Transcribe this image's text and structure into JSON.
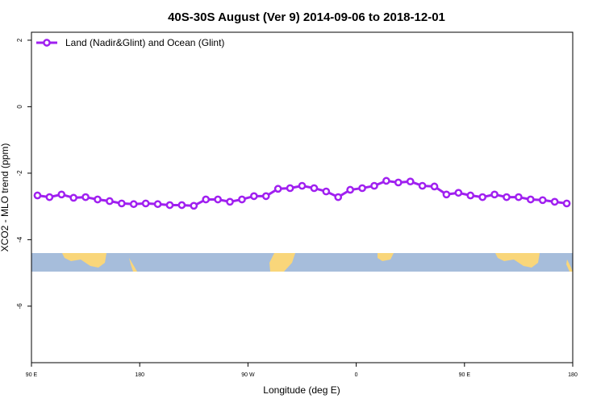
{
  "chart_data": {
    "type": "line",
    "title": "40S-30S August (Ver 9)   2014-09-06 to 2018-12-01",
    "x_label": "Longitude (deg E)",
    "y_label": "XCO2 - MLO trend (ppm)",
    "x": [
      95,
      105,
      115,
      125,
      135,
      145,
      155,
      165,
      175,
      185,
      195,
      205,
      215,
      225,
      235,
      245,
      255,
      265,
      275,
      285,
      295,
      305,
      315,
      325,
      335,
      345,
      355,
      365,
      375,
      385,
      395,
      405,
      415,
      425,
      435,
      445,
      455,
      465,
      475,
      485,
      495,
      505,
      515,
      525,
      535
    ],
    "series": [
      {
        "name": "Land (Nadir&Glint) and Ocean (Glint)",
        "color": "#a020f0",
        "values": [
          -2.67,
          -2.72,
          -2.64,
          -2.74,
          -2.72,
          -2.79,
          -2.84,
          -2.91,
          -2.93,
          -2.91,
          -2.93,
          -2.96,
          -2.96,
          -2.98,
          -2.79,
          -2.79,
          -2.86,
          -2.79,
          -2.69,
          -2.69,
          -2.47,
          -2.45,
          -2.38,
          -2.45,
          -2.55,
          -2.72,
          -2.5,
          -2.45,
          -2.38,
          -2.23,
          -2.28,
          -2.25,
          -2.38,
          -2.4,
          -2.64,
          -2.59,
          -2.67,
          -2.72,
          -2.64,
          -2.72,
          -2.72,
          -2.79,
          -2.81,
          -2.86,
          -2.91
        ]
      }
    ],
    "xlim": [
      90,
      540
    ],
    "xticks": [
      {
        "value": 90,
        "label": "90 E"
      },
      180,
      {
        "value": 270,
        "label": "90 W"
      },
      {
        "value": 360,
        "label": "0"
      },
      {
        "value": 450,
        "label": "90 E"
      },
      {
        "value": 540,
        "label": "180"
      }
    ],
    "ylim": [
      -7.7,
      2.24
    ],
    "yticks": [
      2,
      0,
      -2,
      -4,
      -6
    ],
    "legend": "top-left"
  }
}
